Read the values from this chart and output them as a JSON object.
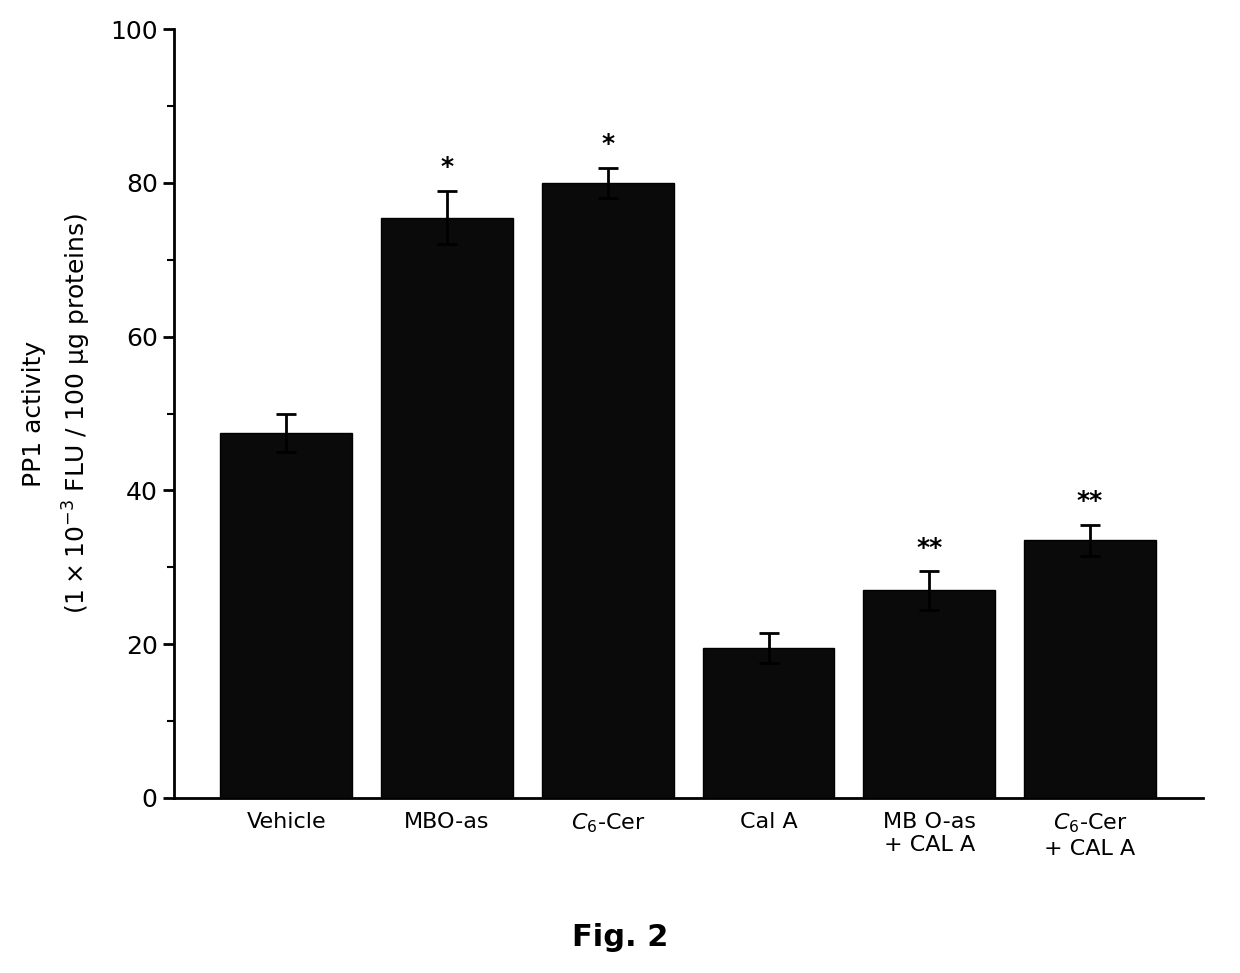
{
  "categories": [
    "Vehicle",
    "MBO-as",
    "C6-Cer",
    "Cal A",
    "MB O-as\n+ CAL A",
    "C6-Cer\n+ CAL A"
  ],
  "values": [
    47.5,
    75.5,
    80.0,
    19.5,
    27.0,
    33.5
  ],
  "errors": [
    2.5,
    3.5,
    2.0,
    2.0,
    2.5,
    2.0
  ],
  "significance": [
    "",
    "*",
    "*",
    "",
    "**",
    "**"
  ],
  "bar_color": "#0a0a0a",
  "bar_width": 0.82,
  "ylim": [
    0,
    100
  ],
  "yticks": [
    0,
    20,
    40,
    60,
    80,
    100
  ],
  "ylabel_line1": "PP1 activity",
  "ylabel_line2": "(1 x 10-3 FLU / 100 ug proteins)",
  "figure_label": "Fig. 2",
  "background_color": "#ffffff",
  "bar_edge_color": "#000000",
  "error_color": "#000000",
  "sig_fontsize": 18,
  "ylabel_fontsize": 18,
  "xlabel_fontsize": 16,
  "tick_fontsize": 18,
  "fig_label_fontsize": 22
}
